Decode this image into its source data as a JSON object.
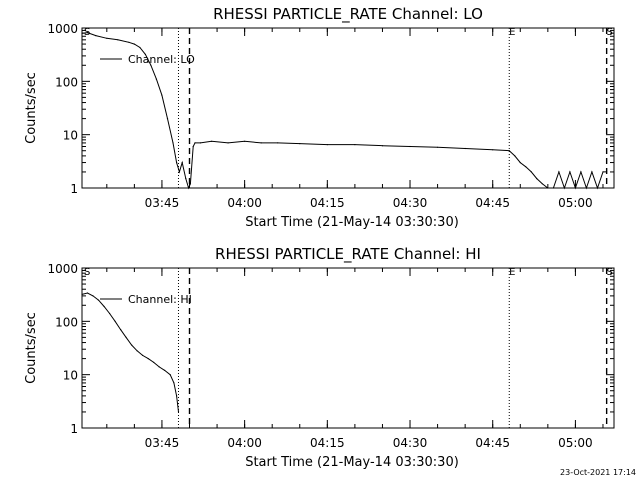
{
  "footer": "23-Oct-2021 17:14",
  "chart_data": [
    {
      "type": "line",
      "title": "RHESSI PARTICLE_RATE Channel: LO",
      "xlabel": "Start Time (21-May-14 03:30:30)",
      "ylabel": "Counts/sec",
      "yscale": "log",
      "ylim": [
        1,
        1000
      ],
      "xlim": [
        "03:30:30",
        "05:07:00"
      ],
      "x_ticks": [
        "03:45",
        "04:00",
        "04:15",
        "04:30",
        "04:45",
        "05:00"
      ],
      "y_ticks": [
        "1",
        "10",
        "100",
        "1000"
      ],
      "legend_placement": "top-left",
      "series": [
        {
          "name": "Channel: LO",
          "x": [
            "03:30:30",
            "03:31:30",
            "03:33:00",
            "03:35:00",
            "03:37:00",
            "03:39:00",
            "03:40:00",
            "03:41:00",
            "03:42:00",
            "03:43:00",
            "03:44:00",
            "03:45:00",
            "03:46:00",
            "03:47:00",
            "03:47:40",
            "03:48:10",
            "03:48:40",
            "03:49:20",
            "03:49:50",
            "03:50:10",
            "03:50:40",
            "03:51:00",
            "03:52:00",
            "03:54:00",
            "03:57:00",
            "04:00:00",
            "04:03:00",
            "04:06:00",
            "04:10:00",
            "04:15:00",
            "04:20:00",
            "04:25:00",
            "04:30:00",
            "04:35:00",
            "04:40:00",
            "04:45:00",
            "04:48:00",
            "04:49:00",
            "04:50:00",
            "04:51:00",
            "04:52:00",
            "04:53:00",
            "04:54:00",
            "04:55:00",
            "04:56:00",
            "04:57:00",
            "04:58:00",
            "04:59:00",
            "05:00:00",
            "05:01:00",
            "05:02:00",
            "05:03:00",
            "05:04:00",
            "05:05:00",
            "05:05:40"
          ],
          "values": [
            800,
            820,
            720,
            640,
            600,
            540,
            500,
            430,
            320,
            200,
            110,
            55,
            20,
            7,
            3,
            2,
            3,
            1.5,
            1,
            1.2,
            6,
            7,
            7,
            7.5,
            7,
            7.5,
            7,
            7,
            6.8,
            6.5,
            6.5,
            6.2,
            6,
            5.8,
            5.5,
            5.2,
            5,
            4,
            3,
            2.5,
            2,
            1.5,
            1.2,
            1,
            1,
            2,
            1,
            2,
            1,
            2,
            1,
            2,
            1,
            2,
            2
          ]
        }
      ],
      "markers": [
        {
          "label": "S",
          "x": "03:30:30"
        },
        {
          "label": "E",
          "x": "04:48:00"
        },
        {
          "label": "S",
          "x": "05:05:40"
        }
      ],
      "vlines": [
        {
          "x": "03:48:00",
          "style": "dotted"
        },
        {
          "x": "03:50:00",
          "style": "dashed"
        },
        {
          "x": "04:48:00",
          "style": "dotted"
        },
        {
          "x": "05:05:40",
          "style": "dashed"
        }
      ]
    },
    {
      "type": "line",
      "title": "RHESSI PARTICLE_RATE Channel: HI",
      "xlabel": "Start Time (21-May-14 03:30:30)",
      "ylabel": "Counts/sec",
      "yscale": "log",
      "ylim": [
        1,
        1000
      ],
      "xlim": [
        "03:30:30",
        "05:07:00"
      ],
      "x_ticks": [
        "03:45",
        "04:00",
        "04:15",
        "04:30",
        "04:45",
        "05:00"
      ],
      "y_ticks": [
        "1",
        "10",
        "100",
        "1000"
      ],
      "legend_placement": "top-left",
      "series": [
        {
          "name": "Channel: HI",
          "x": [
            "03:30:30",
            "03:31:30",
            "03:32:30",
            "03:33:30",
            "03:34:30",
            "03:35:30",
            "03:36:30",
            "03:37:30",
            "03:38:30",
            "03:39:30",
            "03:40:30",
            "03:41:30",
            "03:42:30",
            "03:43:30",
            "03:44:30",
            "03:45:30",
            "03:46:30",
            "03:47:10",
            "03:47:40",
            "03:48:00"
          ],
          "values": [
            320,
            340,
            300,
            250,
            190,
            140,
            100,
            70,
            50,
            36,
            28,
            23,
            20,
            17,
            14,
            12,
            10,
            7,
            4,
            2
          ]
        }
      ],
      "markers": [
        {
          "label": "S",
          "x": "03:30:30"
        },
        {
          "label": "E",
          "x": "04:48:00"
        },
        {
          "label": "S",
          "x": "05:05:40"
        }
      ],
      "vlines": [
        {
          "x": "03:48:00",
          "style": "dotted"
        },
        {
          "x": "03:50:00",
          "style": "dashed"
        },
        {
          "x": "04:48:00",
          "style": "dotted"
        },
        {
          "x": "05:05:40",
          "style": "dashed"
        }
      ]
    }
  ]
}
